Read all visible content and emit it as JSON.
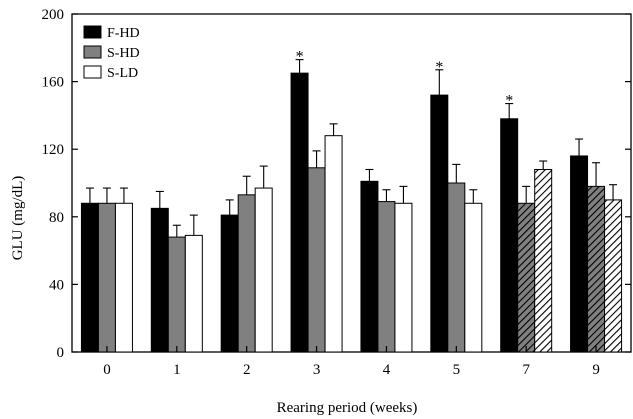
{
  "chart_data": {
    "type": "bar",
    "title": "",
    "xlabel": "Rearing period (weeks)",
    "ylabel": "GLU (mg/dL)",
    "ylim": [
      0,
      200
    ],
    "yticks": [
      "0",
      "40",
      "80",
      "120",
      "160",
      "200"
    ],
    "categories": [
      "0",
      "1",
      "2",
      "3",
      "4",
      "5",
      "7",
      "9"
    ],
    "legend_position": "top-left",
    "series": [
      {
        "name": "F-HD",
        "color": "#000000",
        "values": [
          88,
          85,
          81,
          165,
          101,
          152,
          138,
          116
        ],
        "errors": [
          9,
          10,
          9,
          8,
          7,
          15,
          9,
          10
        ]
      },
      {
        "name": "S-HD",
        "color": "#808080",
        "values": [
          88,
          68,
          93,
          109,
          89,
          100,
          88,
          98
        ],
        "errors": [
          9,
          7,
          11,
          10,
          7,
          11,
          10,
          14
        ],
        "hatched_categories": [
          "7",
          "9"
        ]
      },
      {
        "name": "S-LD",
        "color": "#ffffff",
        "values": [
          88,
          69,
          97,
          128,
          88,
          88,
          108,
          90
        ],
        "errors": [
          9,
          12,
          13,
          7,
          10,
          8,
          5,
          9
        ],
        "hatched_categories": [
          "7",
          "9"
        ]
      }
    ],
    "annotations": [
      {
        "text": "*",
        "category": "3",
        "series": "F-HD"
      },
      {
        "text": "*",
        "category": "5",
        "series": "F-HD"
      },
      {
        "text": "*",
        "category": "7",
        "series": "F-HD"
      }
    ]
  }
}
